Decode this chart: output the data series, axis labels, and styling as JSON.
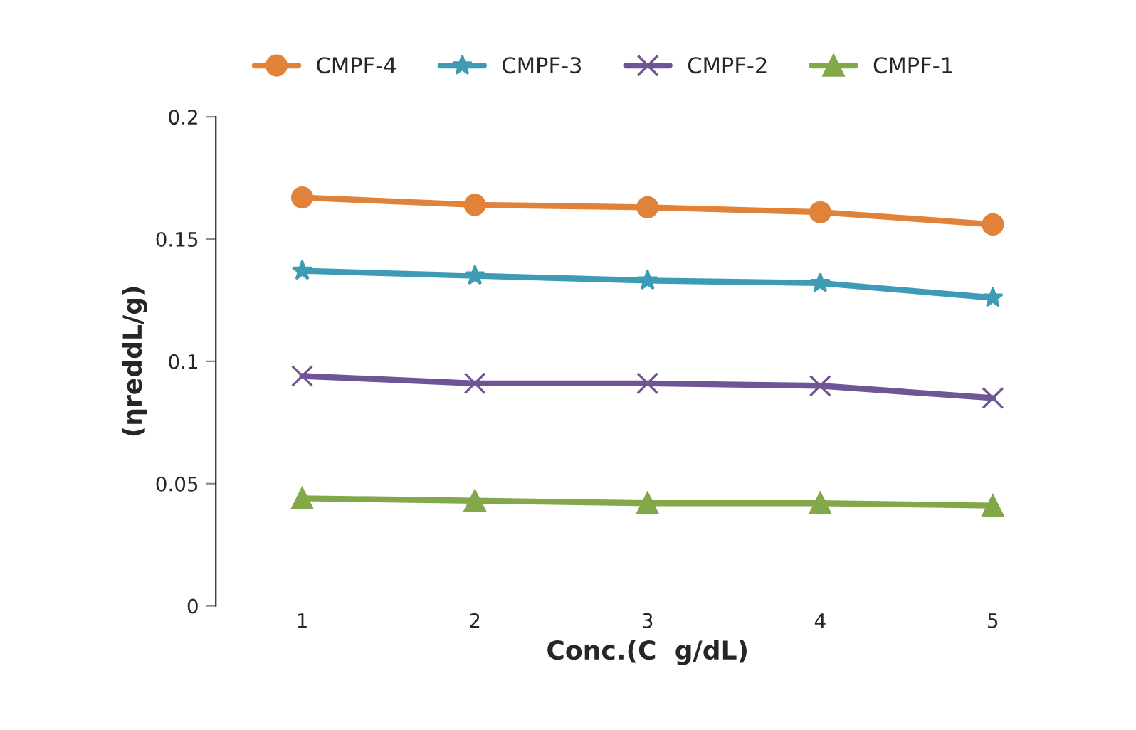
{
  "chart_data": {
    "type": "line",
    "xlabel": "Conc.(C  g/dL)",
    "ylabel": "(ηreddL/g)",
    "categories": [
      "1",
      "2",
      "3",
      "4",
      "5"
    ],
    "series": [
      {
        "name": "CMPF-4",
        "color": "#e0823a",
        "marker": "circle",
        "values": [
          0.167,
          0.164,
          0.163,
          0.161,
          0.156
        ]
      },
      {
        "name": "CMPF-3",
        "color": "#3d9bb5",
        "marker": "star",
        "values": [
          0.137,
          0.135,
          0.133,
          0.132,
          0.126
        ]
      },
      {
        "name": "CMPF-2",
        "color": "#6f5496",
        "marker": "cross",
        "values": [
          0.094,
          0.091,
          0.091,
          0.09,
          0.085
        ]
      },
      {
        "name": "CMPF-1",
        "color": "#83a84a",
        "marker": "triangle",
        "values": [
          0.044,
          0.043,
          0.042,
          0.042,
          0.041
        ]
      }
    ],
    "ylim": [
      0,
      0.2
    ],
    "yticks": [
      {
        "value": 0,
        "label": "0"
      },
      0.05,
      {
        "value": 0.1,
        "label": "0.1"
      },
      0.15,
      {
        "value": 0.2,
        "label": "0.2"
      }
    ],
    "grid": false,
    "legend": "top",
    "line_style": "solid"
  }
}
